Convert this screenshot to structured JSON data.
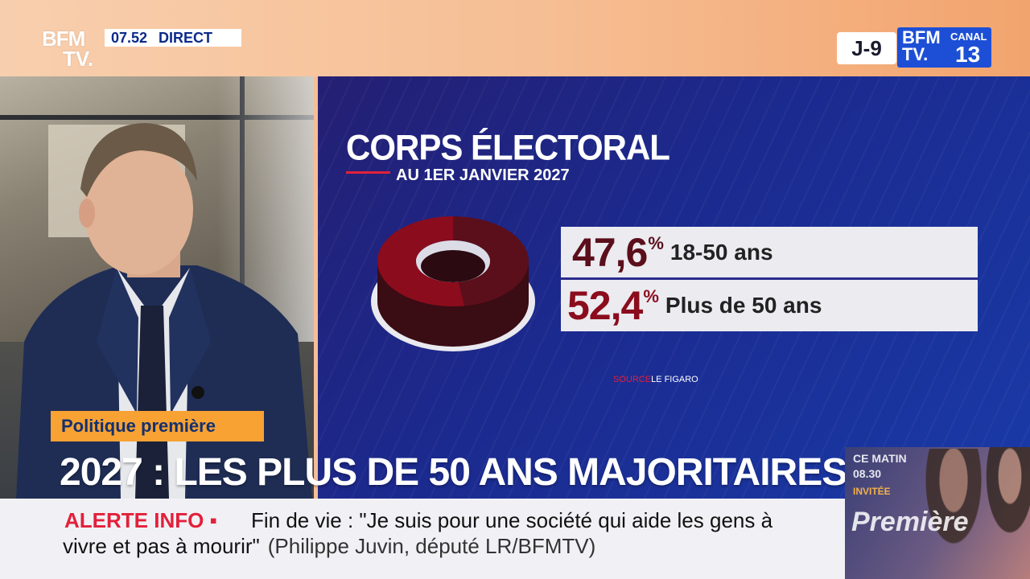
{
  "header": {
    "logo_line1": "BFM",
    "logo_line2": "TV.",
    "time": "07.52",
    "live_label": "DIRECT",
    "countdown": "J-9",
    "channel_brand_line1": "BFM",
    "channel_brand_line2": "TV.",
    "channel_canal": "CANAL",
    "channel_number": "13"
  },
  "graphic": {
    "title": "CORPS ÉLECTORAL",
    "subtitle": "AU 1ER JANVIER 2027",
    "source_prefix": "SOURCE",
    "source_name": "LE FIGARO"
  },
  "chart_data": {
    "type": "pie",
    "title": "CORPS ÉLECTORAL",
    "subtitle": "AU 1ER JANVIER 2027",
    "categories": [
      "18-50 ans",
      "Plus de 50 ans"
    ],
    "values": [
      47.6,
      52.4
    ],
    "value_labels": [
      "47,6",
      "52,4"
    ],
    "unit": "%",
    "colors": [
      "#5b0f1b",
      "#8b0c1d"
    ],
    "style": "3d-donut"
  },
  "lower_third": {
    "topic": "Politique première",
    "headline": "2027 : LES PLUS DE 50 ANS MAJORITAIRES"
  },
  "promo": {
    "label": "CE MATIN",
    "hour": "08.30",
    "guest_label": "INVITÉE",
    "show_name": "Première"
  },
  "alert": {
    "tag": "ALERTE INFO ▪",
    "line1": "Fin de vie : \"Je suis pour une société qui aide les gens à",
    "line2": "vivre et pas à mourir\"",
    "attribution": "(Philippe Juvin, député LR/BFMTV)"
  },
  "colors": {
    "accent_red": "#e3203a",
    "panel_blue": "#1b2a8f",
    "topic_orange": "#f7a233",
    "brand_blue": "#1d4fd6"
  }
}
